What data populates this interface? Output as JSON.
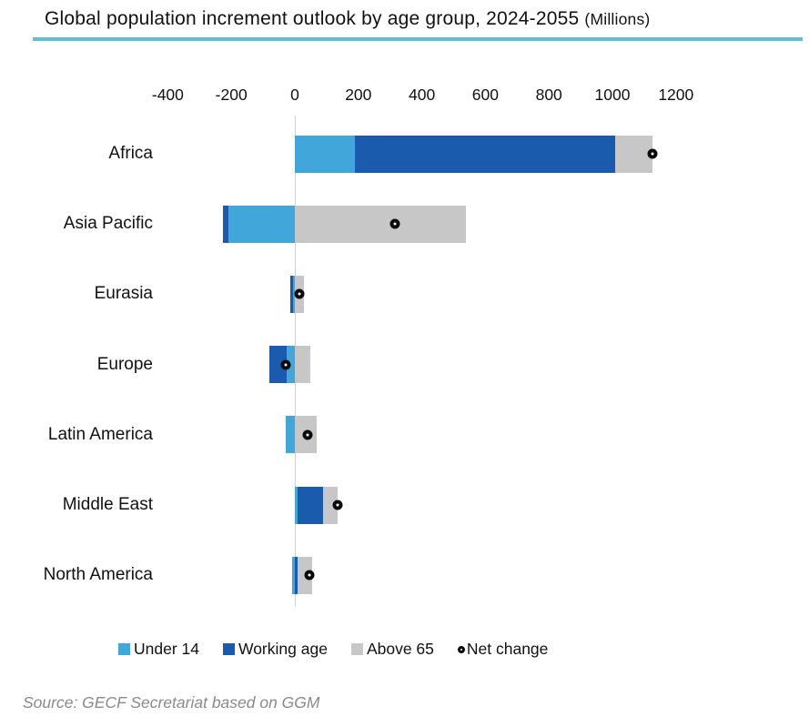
{
  "header": {
    "title": "Global population increment outlook by age group, 2024-2055",
    "unit_suffix": "(Millions)"
  },
  "chart_data": {
    "type": "bar",
    "orientation": "horizontal",
    "stacked": true,
    "title": "Global population increment outlook by age group, 2024-2055 (Millions)",
    "unit": "Millions",
    "categories": [
      "Africa",
      "Asia Pacific",
      "Eurasia",
      "Europe",
      "Latin America",
      "Middle East",
      "North America"
    ],
    "series": [
      {
        "name": "Under 14",
        "color": "#41a7db",
        "values": [
          190,
          -210,
          -5,
          -25,
          -30,
          10,
          -10
        ]
      },
      {
        "name": "Working age",
        "color": "#1a5bad",
        "values": [
          820,
          -15,
          -10,
          -55,
          0,
          80,
          10
        ]
      },
      {
        "name": "Above 65",
        "color": "#c7c7c7",
        "values": [
          115,
          540,
          30,
          50,
          70,
          45,
          45
        ]
      }
    ],
    "marker_series": {
      "name": "Net change",
      "style": "open-circle",
      "color": "#000000",
      "values": [
        1125,
        315,
        15,
        -30,
        40,
        135,
        45
      ]
    },
    "x_ticks": [
      -400,
      -200,
      0,
      200,
      400,
      600,
      800,
      1000,
      1200
    ],
    "xlim": [
      -500,
      1400
    ],
    "grid": "zero-line-only",
    "legend_position": "bottom",
    "accent_underline_color": "#5fbfd3"
  },
  "footer": {
    "source": "Source: GECF Secretariat based on GGM"
  }
}
